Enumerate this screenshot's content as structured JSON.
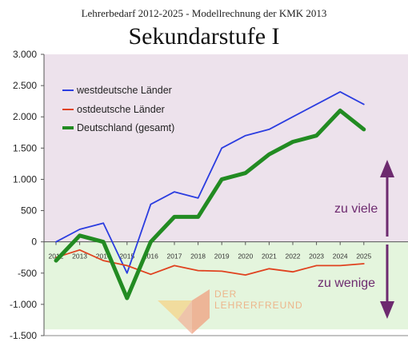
{
  "chart_data": {
    "type": "line",
    "suptitle": "Lehrerbedarf 2012-2025 - Modellrechnung der KMK 2013",
    "title": "Sekundarstufe I",
    "x": [
      "2012",
      "2013",
      "2014",
      "2015",
      "2016",
      "2017",
      "2018",
      "2019",
      "2020",
      "2021",
      "2022",
      "2023",
      "2024",
      "2025"
    ],
    "x_tick_labels": [
      "2012",
      "2013",
      "2014",
      "2015",
      "2016",
      "2017",
      "2018",
      "2019",
      "2020",
      "2021",
      "2022",
      "2023",
      "2024",
      "2025"
    ],
    "ylim": [
      -1500,
      3000
    ],
    "y_ticks": [
      3000,
      2500,
      2000,
      1500,
      1000,
      500,
      0,
      -500,
      -1000,
      -1500
    ],
    "y_tick_labels": [
      "3.000",
      "2.500",
      "2.000",
      "1.500",
      "1.000",
      "500",
      "0",
      "-500",
      "-1.000",
      "-1.500"
    ],
    "grid": false,
    "legend_position": "top-left",
    "series": [
      {
        "name": "westdeutsche Länder",
        "color": "#2b3de0",
        "values": [
          0,
          200,
          300,
          -500,
          600,
          800,
          700,
          1500,
          1700,
          1800,
          2000,
          2200,
          2400,
          2200
        ]
      },
      {
        "name": "ostdeutsche Länder",
        "color": "#e0421f",
        "values": [
          -250,
          -130,
          -300,
          -380,
          -520,
          -380,
          -460,
          -470,
          -530,
          -430,
          -480,
          -380,
          -380,
          -350
        ]
      },
      {
        "name": "Deutschland (gesamt)",
        "color": "#228b22",
        "values": [
          -300,
          100,
          0,
          -900,
          0,
          400,
          400,
          1000,
          1100,
          1400,
          1600,
          1700,
          2100,
          1800
        ]
      }
    ],
    "annotations": {
      "upper": "zu viele",
      "lower": "zu wenige",
      "upper_band_color": "#ede2ec",
      "lower_band_color": "#e4f5dd",
      "arrow_color": "#6d2a6f",
      "label_color": "#6d2a6f"
    },
    "watermark": {
      "line1": "DER",
      "line2": "LEHRERFREUND",
      "color": "#f0a070"
    }
  }
}
